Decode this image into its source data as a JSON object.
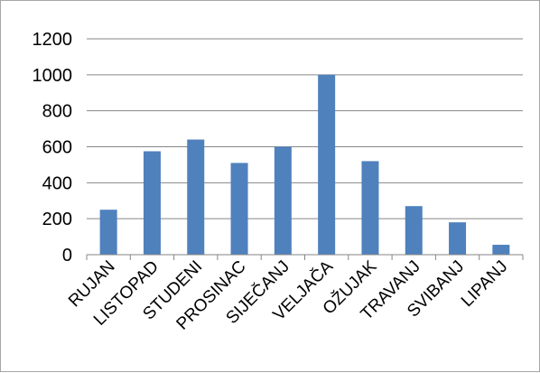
{
  "chart_data": {
    "type": "bar",
    "categories": [
      "RUJAN",
      "LISTOPAD",
      "STUDENI",
      "PROSINAC",
      "SIJEČANJ",
      "VELJAČA",
      "OŽUJAK",
      "TRAVANJ",
      "SVIBANJ",
      "LIPANJ"
    ],
    "values": [
      250,
      575,
      640,
      510,
      600,
      1000,
      520,
      270,
      180,
      55
    ],
    "ylim": [
      0,
      1200
    ],
    "yticks": [
      "0",
      "200",
      "400",
      "600",
      "800",
      "1000",
      "1200"
    ],
    "grid": true,
    "legend": "none",
    "bar_color": "#4f81bd",
    "grid_color": "#868686"
  }
}
